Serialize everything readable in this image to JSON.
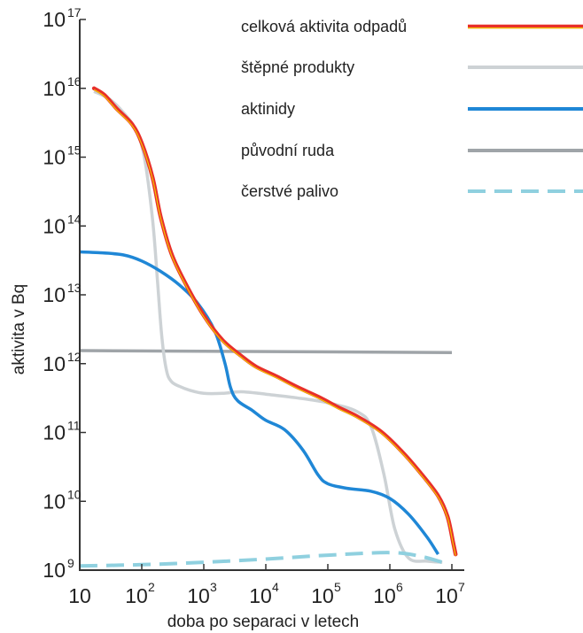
{
  "chart_data": {
    "type": "line",
    "title": "",
    "xlabel": "doba po separaci v letech",
    "ylabel": "aktivita v Bq",
    "x_scale": "log",
    "y_scale": "log",
    "xlim": [
      10,
      10000000
    ],
    "ylim": [
      1000000000,
      100000000000000000
    ],
    "x_ticks": [
      {
        "base": "10",
        "exp": ""
      },
      {
        "base": "10",
        "exp": "2"
      },
      {
        "base": "10",
        "exp": "3"
      },
      {
        "base": "10",
        "exp": "4"
      },
      {
        "base": "10",
        "exp": "5"
      },
      {
        "base": "10",
        "exp": "6"
      },
      {
        "base": "10",
        "exp": "7"
      }
    ],
    "y_ticks": [
      {
        "base": "10",
        "exp": "9"
      },
      {
        "base": "10",
        "exp": "10"
      },
      {
        "base": "10",
        "exp": "11"
      },
      {
        "base": "10",
        "exp": "12"
      },
      {
        "base": "10",
        "exp": "13"
      },
      {
        "base": "10",
        "exp": "14"
      },
      {
        "base": "10",
        "exp": "15"
      },
      {
        "base": "10",
        "exp": "16"
      },
      {
        "base": "10",
        "exp": "17"
      }
    ],
    "grid": false,
    "legend_position": "top-right",
    "series": [
      {
        "name": "celková aktivita odpadů",
        "color": "#e8302a",
        "highlight": "#f3c400",
        "style": "solid",
        "x": [
          17,
          25,
          40,
          70,
          100,
          150,
          200,
          300,
          500,
          1000,
          2000,
          4000,
          7000,
          15000,
          30000,
          70000,
          150000,
          300000,
          700000,
          1500000,
          3000000,
          6000000,
          8500000,
          10500000,
          11500000
        ],
        "y": [
          1e+16,
          8000000000000000.0,
          5000000000000000.0,
          3000000000000000.0,
          1600000000000000.0,
          500000000000000.0,
          140000000000000.0,
          40000000000000.0,
          15000000000000.0,
          5000000000000.0,
          2200000000000.0,
          1300000000000.0,
          900000000000.0,
          650000000000.0,
          470000000000.0,
          330000000000.0,
          230000000000.0,
          170000000000.0,
          105000000000.0,
          55000000000.0,
          27000000000.0,
          12000000000.0,
          6000000000.0,
          2500000000.0,
          1700000000.0
        ]
      },
      {
        "name": "štěpné produkty",
        "color": "#cdd2d5",
        "style": "solid",
        "x": [
          17,
          30,
          50,
          80,
          110,
          150,
          180,
          210,
          250,
          300,
          400,
          600,
          1000,
          2000,
          4000,
          10000,
          30000,
          100000,
          300000,
          500000,
          800000,
          1200000,
          2000000,
          4000000,
          7000000
        ],
        "y": [
          9000000000000000.0,
          7000000000000000.0,
          4500000000000000.0,
          2500000000000000.0,
          1000000000000000.0,
          120000000000000.0,
          15000000000000.0,
          2500000000000.0,
          800000000000.0,
          550000000000.0,
          470000000000.0,
          410000000000.0,
          370000000000.0,
          370000000000.0,
          390000000000.0,
          360000000000.0,
          320000000000.0,
          270000000000.0,
          200000000000.0,
          120000000000.0,
          25000000000.0,
          4000000000.0,
          1500000000.0,
          1350000000.0,
          1300000000.0
        ]
      },
      {
        "name": "aktinidy",
        "color": "#1f87d6",
        "style": "solid",
        "x": [
          10,
          20,
          50,
          100,
          200,
          400,
          800,
          1500,
          2200,
          2700,
          3500,
          6000,
          10000,
          20000,
          40000,
          70000,
          100000,
          200000,
          500000,
          1000000,
          2000000,
          4000000,
          6000000
        ],
        "y": [
          42000000000000.0,
          41000000000000.0,
          38000000000000.0,
          31000000000000.0,
          22000000000000.0,
          14000000000000.0,
          7500000000000.0,
          3000000000000.0,
          1000000000000.0,
          450000000000.0,
          290000000000.0,
          210000000000.0,
          150000000000.0,
          110000000000.0,
          55000000000.0,
          24000000000.0,
          18000000000.0,
          15500000000.0,
          14000000000.0,
          11000000000.0,
          6500000000.0,
          3000000000.0,
          1700000000.0
        ]
      },
      {
        "name": "původní ruda",
        "color": "#9fa4a8",
        "style": "solid",
        "x": [
          10,
          10000000
        ],
        "y": [
          1550000000000.0,
          1450000000000.0
        ]
      },
      {
        "name": "čerstvé palivo",
        "color": "#8fd0df",
        "style": "dashed",
        "x": [
          10,
          100,
          1000,
          10000,
          100000,
          1000000,
          3000000,
          7000000
        ],
        "y": [
          1150000000.0,
          1200000000.0,
          1300000000.0,
          1450000000.0,
          1650000000.0,
          1800000000.0,
          1600000000.0,
          1300000000.0
        ]
      }
    ]
  }
}
